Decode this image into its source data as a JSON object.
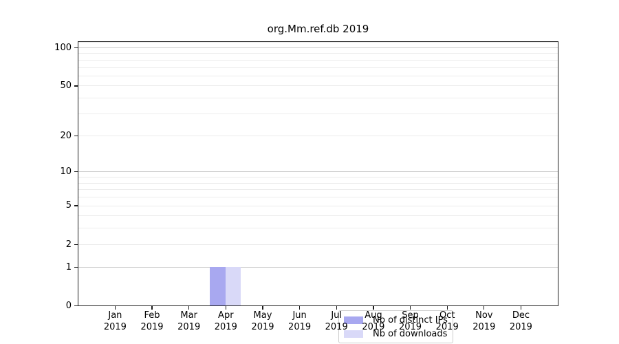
{
  "chart_data": {
    "type": "bar",
    "title": "org.Mm.ref.db 2019",
    "categories": [
      "Jan",
      "Feb",
      "Mar",
      "Apr",
      "May",
      "Jun",
      "Jul",
      "Aug",
      "Sep",
      "Oct",
      "Nov",
      "Dec"
    ],
    "year_label": "2019",
    "series": [
      {
        "name": "Nb of distinct IPs",
        "color": "#a8a8f0",
        "values": [
          0,
          0,
          0,
          1,
          0,
          0,
          0,
          0,
          0,
          0,
          0,
          0
        ]
      },
      {
        "name": "Nb of downloads",
        "color": "#d9d9f8",
        "values": [
          0,
          0,
          0,
          1,
          0,
          0,
          0,
          0,
          0,
          0,
          0,
          0
        ]
      }
    ],
    "yscale": "log1p",
    "ylim": [
      0,
      113
    ],
    "yticks": [
      0,
      1,
      2,
      5,
      10,
      20,
      50,
      100
    ],
    "y_gridlines_major": [
      1,
      10,
      100
    ],
    "y_gridlines_minor": [
      2,
      3,
      4,
      5,
      6,
      7,
      8,
      9,
      20,
      30,
      40,
      50,
      60,
      70,
      80,
      90,
      110
    ],
    "grid": true,
    "legend_position": "inside-bottom-center",
    "colors": {
      "grid_major": "#c9c9c9",
      "grid_minor": "#ececec",
      "spine": "#1a1a1a",
      "legend_border": "#cccccc",
      "text": "#000000",
      "background": "#ffffff"
    }
  }
}
